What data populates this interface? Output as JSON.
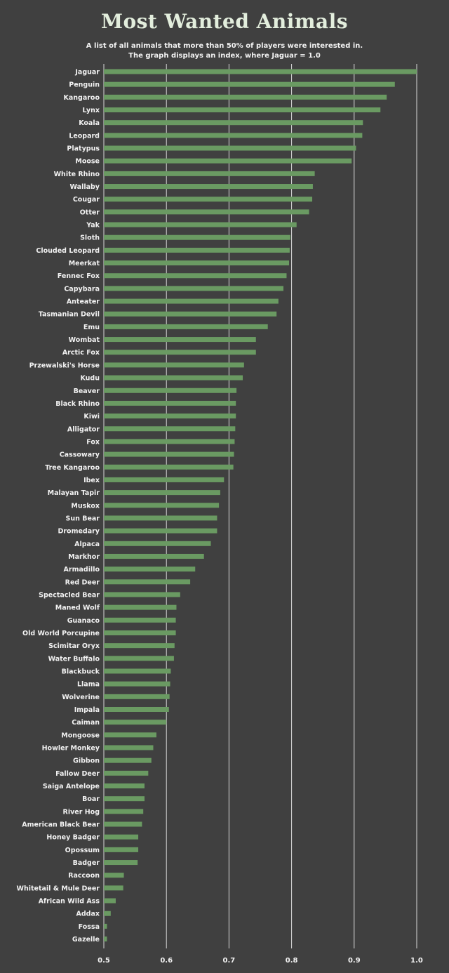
{
  "chart_data": {
    "type": "bar",
    "orientation": "horizontal",
    "title": "Most Wanted Animals",
    "subtitle_lines": [
      "A list of all animals that more than 50% of players were interested in.",
      "The graph displays an index, where Jaguar = 1.0"
    ],
    "xlim": [
      0.5,
      1.0
    ],
    "xticks": [
      "0.5",
      "0.6",
      "0.7",
      "0.8",
      "0.9",
      "1.0"
    ],
    "grid": true,
    "bar_color": "#6a9a62",
    "grid_color": "#d9d9d9",
    "categories": [
      "Jaguar",
      "Penguin",
      "Kangaroo",
      "Lynx",
      "Koala",
      "Leopard",
      "Platypus",
      "Moose",
      "White Rhino",
      "Wallaby",
      "Cougar",
      "Otter",
      "Yak",
      "Sloth",
      "Clouded Leopard",
      "Meerkat",
      "Fennec Fox",
      "Capybara",
      "Anteater",
      "Tasmanian Devil",
      "Emu",
      "Wombat",
      "Arctic Fox",
      "Przewalski's Horse",
      "Kudu",
      "Beaver",
      "Black Rhino",
      "Kiwi",
      "Alligator",
      "Fox",
      "Cassowary",
      "Tree Kangaroo",
      "Ibex",
      "Malayan Tapir",
      "Muskox",
      "Sun Bear",
      "Dromedary",
      "Alpaca",
      "Markhor",
      "Armadillo",
      "Red Deer",
      "Spectacled Bear",
      "Maned Wolf",
      "Guanaco",
      "Old World Porcupine",
      "Scimitar Oryx",
      "Water Buffalo",
      "Blackbuck",
      "Llama",
      "Wolverine",
      "Impala",
      "Caiman",
      "Mongoose",
      "Howler Monkey",
      "Gibbon",
      "Fallow Deer",
      "Saiga Antelope",
      "Boar",
      "River Hog",
      "American Black Bear",
      "Honey Badger",
      "Opossum",
      "Badger",
      "Raccoon",
      "Whitetail & Mule Deer",
      "African Wild Ass",
      "Addax",
      "Fossa",
      "Gazelle"
    ],
    "values": [
      1.0,
      0.965,
      0.952,
      0.942,
      0.914,
      0.913,
      0.903,
      0.896,
      0.837,
      0.834,
      0.833,
      0.828,
      0.808,
      0.798,
      0.797,
      0.796,
      0.792,
      0.787,
      0.779,
      0.776,
      0.762,
      0.743,
      0.743,
      0.724,
      0.722,
      0.712,
      0.711,
      0.711,
      0.71,
      0.709,
      0.708,
      0.707,
      0.692,
      0.686,
      0.684,
      0.681,
      0.681,
      0.671,
      0.66,
      0.646,
      0.638,
      0.622,
      0.616,
      0.615,
      0.615,
      0.613,
      0.612,
      0.607,
      0.606,
      0.605,
      0.604,
      0.6,
      0.584,
      0.579,
      0.576,
      0.571,
      0.565,
      0.565,
      0.563,
      0.561,
      0.555,
      0.555,
      0.554,
      0.532,
      0.531,
      0.519,
      0.511,
      0.505,
      0.505
    ]
  }
}
